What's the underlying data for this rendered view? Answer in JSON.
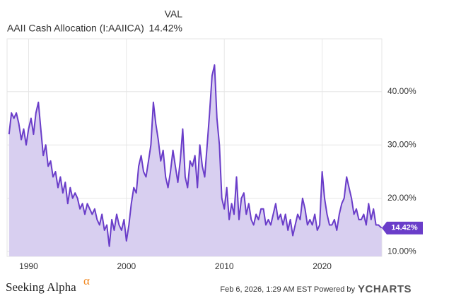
{
  "chart_data": {
    "type": "area-line",
    "series": [
      {
        "name": "AAII Cash Allocation (I:AAIICA)",
        "color": "#6a3dc9",
        "fill": "#d8cff0",
        "last_label": "14.42%",
        "x": [
          1988,
          1988.25,
          1988.5,
          1988.75,
          1989,
          1989.25,
          1989.5,
          1989.75,
          1990,
          1990.25,
          1990.5,
          1990.75,
          1991,
          1991.25,
          1991.5,
          1991.75,
          1992,
          1992.25,
          1992.5,
          1992.75,
          1993,
          1993.25,
          1993.5,
          1993.75,
          1994,
          1994.25,
          1994.5,
          1994.75,
          1995,
          1995.25,
          1995.5,
          1995.75,
          1996,
          1996.25,
          1996.5,
          1996.75,
          1997,
          1997.25,
          1997.5,
          1997.75,
          1998,
          1998.25,
          1998.5,
          1998.75,
          1999,
          1999.25,
          1999.5,
          1999.75,
          2000,
          2000.25,
          2000.5,
          2000.75,
          2001,
          2001.25,
          2001.5,
          2001.75,
          2002,
          2002.25,
          2002.5,
          2002.75,
          2003,
          2003.25,
          2003.5,
          2003.75,
          2004,
          2004.25,
          2004.5,
          2004.75,
          2005,
          2005.25,
          2005.5,
          2005.75,
          2006,
          2006.25,
          2006.5,
          2006.75,
          2007,
          2007.25,
          2007.5,
          2007.75,
          2008,
          2008.25,
          2008.5,
          2008.75,
          2009,
          2009.25,
          2009.5,
          2009.75,
          2010,
          2010.25,
          2010.5,
          2010.75,
          2011,
          2011.25,
          2011.5,
          2011.75,
          2012,
          2012.25,
          2012.5,
          2012.75,
          2013,
          2013.25,
          2013.5,
          2013.75,
          2014,
          2014.25,
          2014.5,
          2014.75,
          2015,
          2015.25,
          2015.5,
          2015.75,
          2016,
          2016.25,
          2016.5,
          2016.75,
          2017,
          2017.25,
          2017.5,
          2017.75,
          2018,
          2018.25,
          2018.5,
          2018.75,
          2019,
          2019.25,
          2019.5,
          2019.75,
          2020,
          2020.25,
          2020.5,
          2020.75,
          2021,
          2021.25,
          2021.5,
          2021.75,
          2022,
          2022.25,
          2022.5,
          2022.75,
          2023,
          2023.25,
          2023.5,
          2023.75,
          2024,
          2024.25,
          2024.5,
          2024.75,
          2025,
          2025.25,
          2025.5,
          2025.75,
          2026.08
        ],
        "values": [
          32,
          36,
          35,
          36,
          34,
          31,
          33,
          30,
          33,
          35,
          32,
          36,
          38,
          33,
          28,
          30,
          26,
          27,
          24,
          25,
          22,
          24,
          21,
          23,
          19,
          22,
          20,
          21,
          20,
          18,
          19,
          17,
          19,
          18,
          17,
          18,
          16,
          15,
          17,
          14,
          15,
          11,
          16,
          14,
          17,
          15,
          14,
          16,
          12,
          15,
          19,
          22,
          21,
          26,
          28,
          25,
          24,
          27,
          30,
          38,
          34,
          31,
          27,
          29,
          24,
          22,
          25,
          29,
          26,
          23,
          27,
          33,
          24,
          22,
          27,
          26,
          28,
          22,
          30,
          26,
          24,
          30,
          36,
          43,
          45,
          35,
          30,
          20,
          18,
          22,
          16,
          19,
          17,
          24,
          16,
          20,
          21,
          17,
          19,
          16,
          15,
          17,
          16,
          18,
          18,
          15,
          16,
          15,
          17,
          19,
          16,
          17,
          15,
          17,
          14,
          16,
          13,
          15,
          17,
          16,
          20,
          18,
          15,
          16,
          15,
          17,
          14,
          15,
          25,
          20,
          17,
          15,
          15,
          16,
          14,
          17,
          19,
          20,
          24,
          22,
          20,
          17,
          18,
          16,
          16,
          17,
          15,
          19,
          16,
          18,
          15,
          15,
          14.42
        ]
      }
    ],
    "xlim": [
      1987.8,
      2026.1
    ],
    "xticks": [
      1990,
      2000,
      2010,
      2020
    ],
    "ylim": [
      9.1,
      49.9
    ],
    "yticks": [
      {
        "value": 10,
        "label": "10.00%"
      },
      {
        "value": 20,
        "label": "20.00%"
      },
      {
        "value": 30,
        "label": "30.00%"
      },
      {
        "value": 40,
        "label": "40.00%"
      }
    ],
    "grid": true,
    "legend_header": "VAL",
    "timestamp": "Feb 6, 2026, 1:29 AM EST Powered by",
    "brand": "YCHARTS",
    "logo": "Seeking Alpha",
    "logo_mark": "α"
  }
}
